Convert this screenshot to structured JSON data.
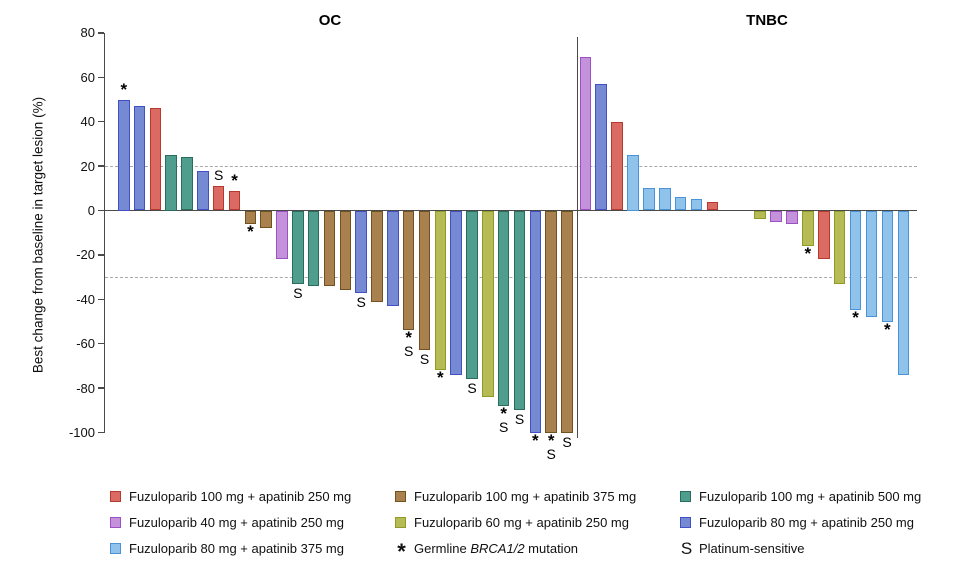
{
  "chart_data": {
    "type": "bar",
    "ylabel": "Best change from baseline in target lesion (%)",
    "ylim": [
      -100,
      80
    ],
    "yticks": [
      80,
      60,
      40,
      20,
      0,
      -20,
      -40,
      -60,
      -80,
      -100
    ],
    "reference_lines": [
      20,
      -30
    ],
    "mark_meanings": {
      "*": "Germline BRCA1/2 mutation",
      "S": "Platinum-sensitive"
    },
    "colors": {
      "red": {
        "fill": "#DB6A62",
        "border": "#B43A31"
      },
      "brown": {
        "fill": "#A8814F",
        "border": "#71511F"
      },
      "teal": {
        "fill": "#4E9D8D",
        "border": "#2B6C5F"
      },
      "orchid": {
        "fill": "#C492DB",
        "border": "#9B51C4"
      },
      "olive": {
        "fill": "#B6BB56",
        "border": "#8E9C27"
      },
      "royalblue": {
        "fill": "#7689D3",
        "border": "#4150C4"
      },
      "lightblue": {
        "fill": "#8FC3EC",
        "border": "#4A94D6"
      }
    },
    "axis_color": "#4a4a4a",
    "dashed_line_color": "#a9a9a9",
    "groups": [
      {
        "title": "OC",
        "bars": [
          {
            "value": 50,
            "color": "royalblue",
            "mark": "*"
          },
          {
            "value": 47,
            "color": "royalblue",
            "mark": null
          },
          {
            "value": 46,
            "color": "red",
            "mark": null
          },
          {
            "value": 25,
            "color": "teal",
            "mark": null
          },
          {
            "value": 24,
            "color": "teal",
            "mark": null
          },
          {
            "value": 18,
            "color": "royalblue",
            "mark": null
          },
          {
            "value": 11,
            "color": "red",
            "mark": "S"
          },
          {
            "value": 9,
            "color": "red",
            "mark": "*"
          },
          {
            "value": -6,
            "color": "brown",
            "mark": "*"
          },
          {
            "value": -8,
            "color": "brown",
            "mark": null
          },
          {
            "value": -22,
            "color": "orchid",
            "mark": null
          },
          {
            "value": -33,
            "color": "teal",
            "mark": "S"
          },
          {
            "value": -34,
            "color": "teal",
            "mark": null
          },
          {
            "value": -34,
            "color": "brown",
            "mark": null
          },
          {
            "value": -36,
            "color": "brown",
            "mark": null
          },
          {
            "value": -37,
            "color": "royalblue",
            "mark": "S"
          },
          {
            "value": -41,
            "color": "brown",
            "mark": null
          },
          {
            "value": -43,
            "color": "royalblue",
            "mark": null
          },
          {
            "value": -54,
            "color": "brown",
            "mark": "*S"
          },
          {
            "value": -63,
            "color": "brown",
            "mark": "S"
          },
          {
            "value": -72,
            "color": "olive",
            "mark": "*"
          },
          {
            "value": -74,
            "color": "royalblue",
            "mark": null
          },
          {
            "value": -76,
            "color": "teal",
            "mark": "S"
          },
          {
            "value": -84,
            "color": "olive",
            "mark": null
          },
          {
            "value": -88,
            "color": "teal",
            "mark": "*S"
          },
          {
            "value": -90,
            "color": "teal",
            "mark": "S"
          },
          {
            "value": -100,
            "color": "royalblue",
            "mark": "*"
          },
          {
            "value": -100,
            "color": "brown",
            "mark": "*S"
          },
          {
            "value": -100,
            "color": "brown",
            "mark": "S"
          }
        ]
      },
      {
        "title": "TNBC",
        "bars": [
          {
            "value": 69,
            "color": "orchid",
            "mark": null
          },
          {
            "value": 57,
            "color": "royalblue",
            "mark": null
          },
          {
            "value": 40,
            "color": "red",
            "mark": null
          },
          {
            "value": 25,
            "color": "lightblue",
            "mark": null
          },
          {
            "value": 10,
            "color": "lightblue",
            "mark": null
          },
          {
            "value": 10,
            "color": "lightblue",
            "mark": null
          },
          {
            "value": 6,
            "color": "lightblue",
            "mark": null
          },
          {
            "value": 5,
            "color": "lightblue",
            "mark": null
          },
          {
            "value": 4,
            "color": "red",
            "mark": null
          },
          {
            "value": 0,
            "color": null,
            "mark": null
          },
          {
            "value": 0,
            "color": null,
            "mark": null
          },
          {
            "value": -4,
            "color": "olive",
            "mark": null
          },
          {
            "value": -5,
            "color": "orchid",
            "mark": null
          },
          {
            "value": -6,
            "color": "orchid",
            "mark": null
          },
          {
            "value": -16,
            "color": "olive",
            "mark": "*"
          },
          {
            "value": -22,
            "color": "red",
            "mark": null
          },
          {
            "value": -33,
            "color": "olive",
            "mark": null
          },
          {
            "value": -45,
            "color": "lightblue",
            "mark": "*"
          },
          {
            "value": -48,
            "color": "lightblue",
            "mark": null
          },
          {
            "value": -50,
            "color": "lightblue",
            "mark": "*"
          },
          {
            "value": -74,
            "color": "lightblue",
            "mark": null
          }
        ]
      }
    ]
  },
  "legend": {
    "columns": [
      [
        {
          "swatch": "red",
          "label": "Fuzuloparib 100 mg + apatinib 250 mg"
        },
        {
          "swatch": "orchid",
          "label": "Fuzuloparib 40 mg + apatinib 250 mg"
        },
        {
          "swatch": "lightblue",
          "label": "Fuzuloparib 80 mg + apatinib 375 mg"
        }
      ],
      [
        {
          "swatch": "brown",
          "label": "Fuzuloparib 100 mg + apatinib 375 mg"
        },
        {
          "swatch": "olive",
          "label": "Fuzuloparib 60 mg + apatinib 250 mg"
        },
        {
          "glyph": "*",
          "label_prefix": "Germline ",
          "label_italic": "BRCA1/2",
          "label_suffix": " mutation"
        }
      ],
      [
        {
          "swatch": "teal",
          "label": "Fuzuloparib 100 mg + apatinib 500 mg"
        },
        {
          "swatch": "royalblue",
          "label": "Fuzuloparib 80 mg + apatinib 250 mg"
        },
        {
          "glyph": "S",
          "label": "Platinum-sensitive"
        }
      ]
    ]
  }
}
